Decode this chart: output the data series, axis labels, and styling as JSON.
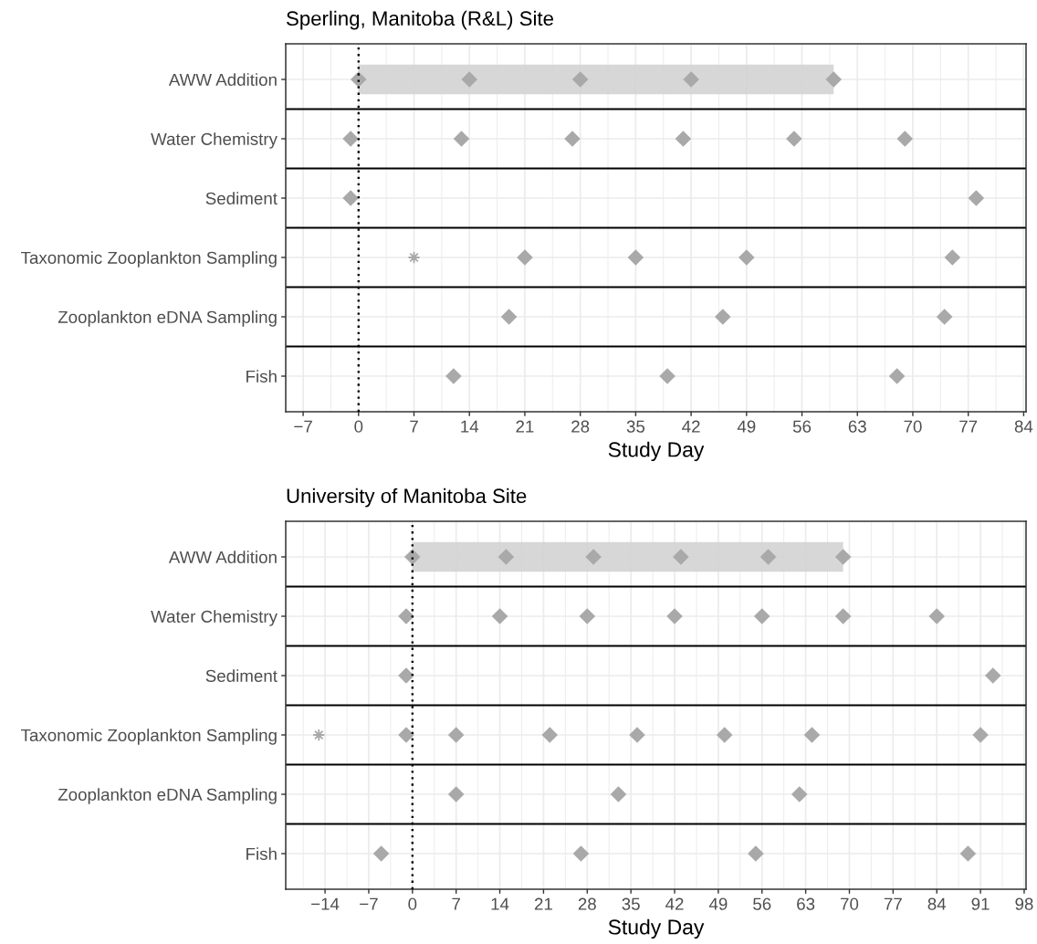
{
  "chart_data": [
    {
      "type": "scatter",
      "title": "Sperling, Manitoba (R&L) Site",
      "xlabel": "Study Day",
      "orientation": "horizontal",
      "categories": [
        "AWW Addition",
        "Water Chemistry",
        "Sediment",
        "Taxonomic Zooplankton Sampling",
        "Zooplankton eDNA Sampling",
        "Fish"
      ],
      "series": [
        {
          "type": "bar",
          "color": "#d3d3d3",
          "values": [
            60,
            null,
            null,
            null,
            null,
            null
          ],
          "base": [
            0,
            null,
            null,
            null,
            null,
            null
          ]
        },
        {
          "marker": "diamond",
          "color": "#a9a9a9",
          "x": [
            "AWW Addition",
            "AWW Addition",
            "AWW Addition",
            "AWW Addition",
            "AWW Addition",
            "Water Chemistry",
            "Water Chemistry",
            "Water Chemistry",
            "Water Chemistry",
            "Water Chemistry",
            "Water Chemistry",
            "Sediment",
            "Sediment",
            "Taxonomic Zooplankton Sampling",
            "Taxonomic Zooplankton Sampling",
            "Taxonomic Zooplankton Sampling",
            "Taxonomic Zooplankton Sampling",
            "Zooplankton eDNA Sampling",
            "Zooplankton eDNA Sampling",
            "Zooplankton eDNA Sampling",
            "Fish",
            "Fish",
            "Fish"
          ],
          "values": [
            0,
            14,
            28,
            42,
            60,
            -1,
            13,
            27,
            41,
            55,
            69,
            -1,
            78,
            21,
            35,
            49,
            75,
            19,
            46,
            74,
            12,
            39,
            68
          ]
        },
        {
          "marker": "star",
          "color": "#a9a9a9",
          "x": [
            "Taxonomic Zooplankton Sampling"
          ],
          "values": [
            7
          ]
        }
      ],
      "xlim": [
        -9.2,
        84.3
      ],
      "xticks": [
        {
          "value": -7,
          "label": "−7"
        },
        {
          "value": -3.5,
          "label": null
        },
        0,
        {
          "value": 3.5,
          "label": null
        },
        7,
        {
          "value": 10.5,
          "label": null
        },
        14,
        {
          "value": 17.5,
          "label": null
        },
        21,
        {
          "value": 24.5,
          "label": null
        },
        28,
        {
          "value": 31.5,
          "label": null
        },
        35,
        {
          "value": 38.5,
          "label": null
        },
        42,
        {
          "value": 45.5,
          "label": null
        },
        49,
        {
          "value": 52.5,
          "label": null
        },
        56,
        {
          "value": 59.5,
          "label": null
        },
        63,
        {
          "value": 66.5,
          "label": null
        },
        70,
        {
          "value": 73.5,
          "label": null
        },
        77,
        {
          "value": 80.5,
          "label": null
        },
        84
      ],
      "ref_lines": [
        {
          "axis": "x",
          "value": 0,
          "color": "#000000",
          "line_style": "dotted"
        }
      ],
      "grid": true
    },
    {
      "type": "scatter",
      "title": "University of Manitoba Site",
      "xlabel": "Study Day",
      "orientation": "horizontal",
      "categories": [
        "AWW Addition",
        "Water Chemistry",
        "Sediment",
        "Taxonomic Zooplankton Sampling",
        "Zooplankton eDNA Sampling",
        "Fish"
      ],
      "series": [
        {
          "type": "bar",
          "color": "#d3d3d3",
          "values": [
            69,
            null,
            null,
            null,
            null,
            null
          ],
          "base": [
            0,
            null,
            null,
            null,
            null,
            null
          ]
        },
        {
          "marker": "diamond",
          "color": "#a9a9a9",
          "x": [
            "AWW Addition",
            "AWW Addition",
            "AWW Addition",
            "AWW Addition",
            "AWW Addition",
            "AWW Addition",
            "Water Chemistry",
            "Water Chemistry",
            "Water Chemistry",
            "Water Chemistry",
            "Water Chemistry",
            "Water Chemistry",
            "Water Chemistry",
            "Sediment",
            "Sediment",
            "Taxonomic Zooplankton Sampling",
            "Taxonomic Zooplankton Sampling",
            "Taxonomic Zooplankton Sampling",
            "Taxonomic Zooplankton Sampling",
            "Taxonomic Zooplankton Sampling",
            "Taxonomic Zooplankton Sampling",
            "Taxonomic Zooplankton Sampling",
            "Zooplankton eDNA Sampling",
            "Zooplankton eDNA Sampling",
            "Zooplankton eDNA Sampling",
            "Fish",
            "Fish",
            "Fish",
            "Fish"
          ],
          "values": [
            0,
            15,
            29,
            43,
            57,
            69,
            -1,
            14,
            28,
            42,
            56,
            69,
            84,
            -1,
            93,
            -1,
            7,
            22,
            36,
            50,
            64,
            91,
            7,
            33,
            62,
            -5,
            27,
            55,
            89
          ]
        },
        {
          "marker": "star",
          "color": "#a9a9a9",
          "x": [
            "Taxonomic Zooplankton Sampling"
          ],
          "values": [
            -15
          ]
        }
      ],
      "xlim": [
        -20.3,
        98.3
      ],
      "xticks": [
        {
          "value": -17.5,
          "label": null
        },
        {
          "value": -14,
          "label": "−14"
        },
        {
          "value": -10.5,
          "label": null
        },
        {
          "value": -7,
          "label": "−7"
        },
        {
          "value": -3.5,
          "label": null
        },
        0,
        {
          "value": 3.5,
          "label": null
        },
        7,
        {
          "value": 10.5,
          "label": null
        },
        14,
        {
          "value": 17.5,
          "label": null
        },
        21,
        {
          "value": 24.5,
          "label": null
        },
        28,
        {
          "value": 31.5,
          "label": null
        },
        35,
        {
          "value": 38.5,
          "label": null
        },
        42,
        {
          "value": 45.5,
          "label": null
        },
        49,
        {
          "value": 52.5,
          "label": null
        },
        56,
        {
          "value": 59.5,
          "label": null
        },
        63,
        {
          "value": 66.5,
          "label": null
        },
        70,
        {
          "value": 73.5,
          "label": null
        },
        77,
        {
          "value": 80.5,
          "label": null
        },
        84,
        {
          "value": 87.5,
          "label": null
        },
        91,
        {
          "value": 94.5,
          "label": null
        },
        98
      ],
      "ref_lines": [
        {
          "axis": "x",
          "value": 0,
          "color": "#000000",
          "line_style": "dotted"
        }
      ],
      "grid": true
    }
  ]
}
